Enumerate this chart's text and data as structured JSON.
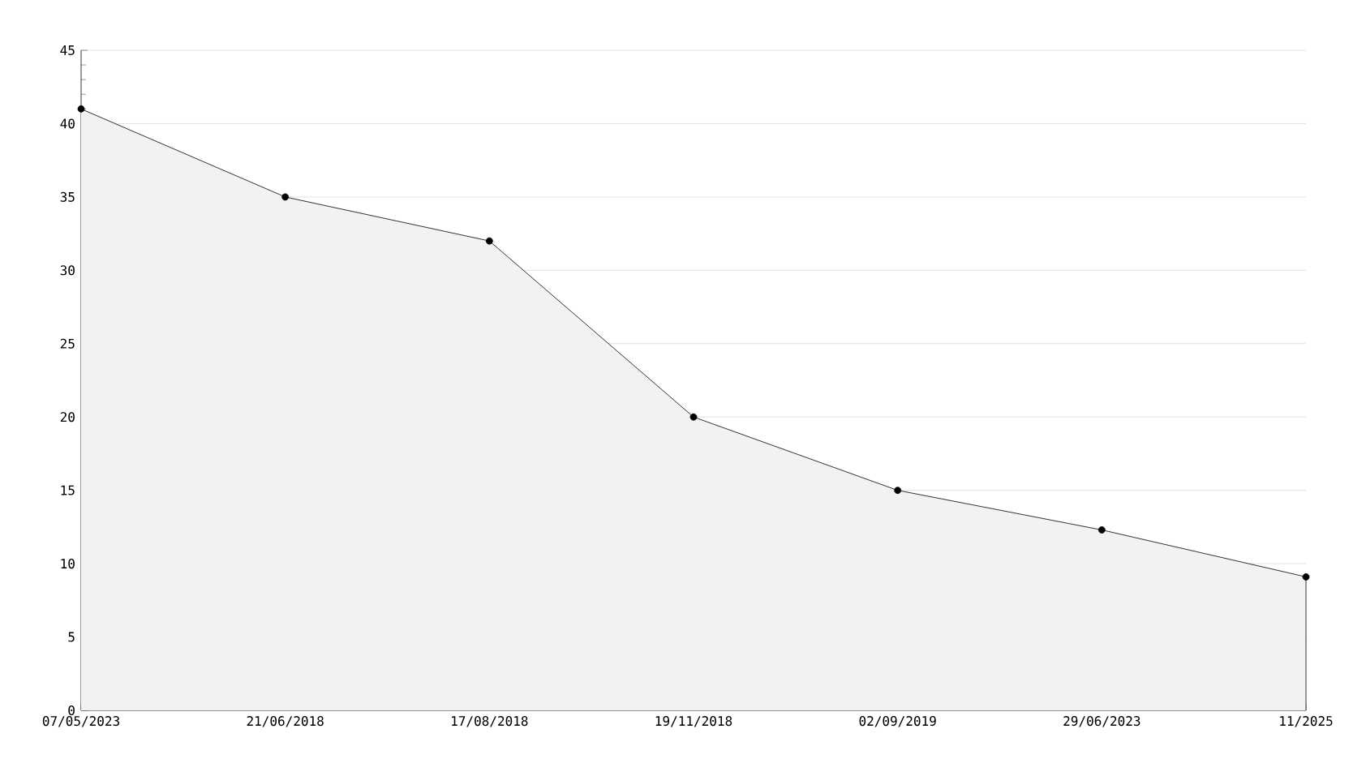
{
  "chart_data": {
    "type": "area",
    "categories": [
      "07/05/2023",
      "21/06/2018",
      "17/08/2018",
      "19/11/2018",
      "02/09/2019",
      "29/06/2023",
      "11/2025"
    ],
    "series": [
      {
        "color": "#000000",
        "values": [
          41,
          35,
          32,
          20,
          15,
          12.3,
          9.1
        ]
      }
    ],
    "ylim": [
      0,
      45
    ],
    "yticks": [
      0,
      5,
      10,
      15,
      20,
      25,
      30,
      35,
      40,
      45
    ],
    "grid": "y",
    "marker": "circle",
    "line_style": "solid"
  }
}
